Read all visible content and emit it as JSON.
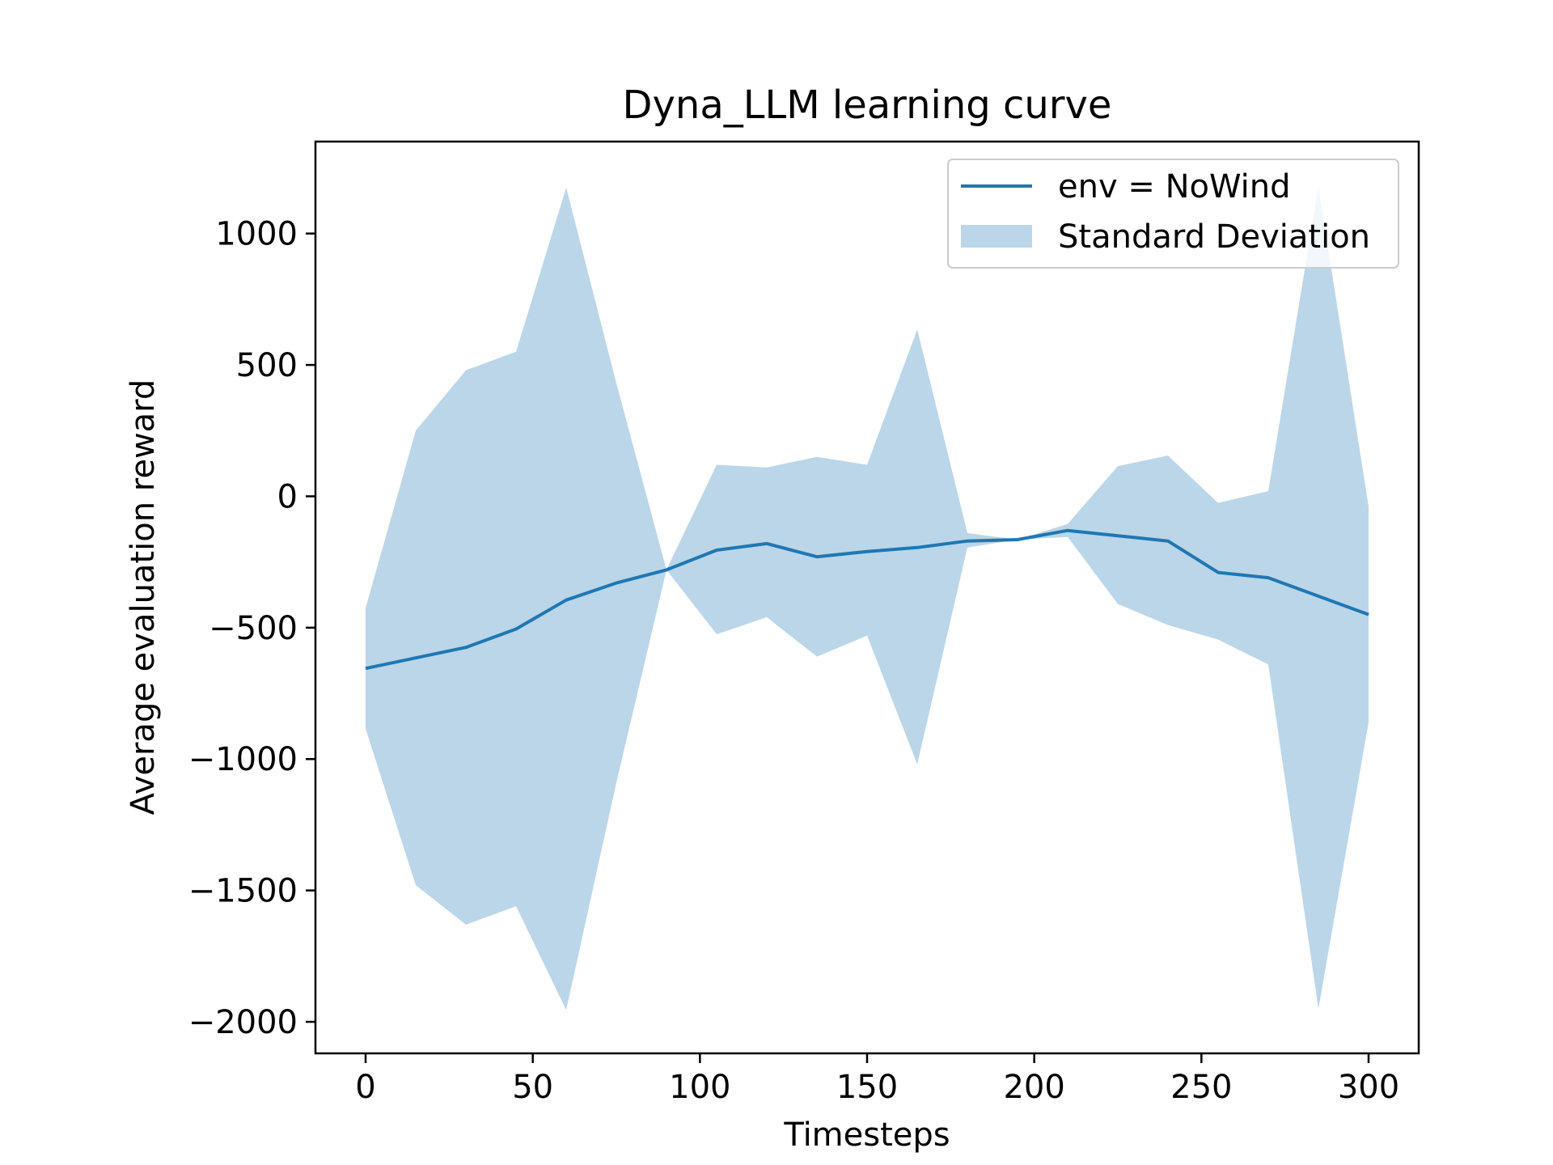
{
  "chart_data": {
    "type": "line",
    "title": "Dyna_LLM learning curve",
    "xlabel": "Timesteps",
    "ylabel": "Average evaluation reward",
    "xlim": [
      -15,
      315
    ],
    "ylim": [
      -2120,
      1350
    ],
    "xticks": [
      0,
      50,
      100,
      150,
      200,
      250,
      300
    ],
    "xtick_labels": [
      "0",
      "50",
      "100",
      "150",
      "200",
      "250",
      "300"
    ],
    "yticks": [
      -2000,
      -1500,
      -1000,
      -500,
      0,
      500,
      1000
    ],
    "ytick_labels": [
      "−2000",
      "−1500",
      "−1000",
      "−500",
      "0",
      "500",
      "1000"
    ],
    "grid": false,
    "legend_position": "top-right",
    "x": [
      0,
      15,
      30,
      45,
      60,
      75,
      90,
      105,
      120,
      135,
      150,
      165,
      180,
      195,
      210,
      225,
      240,
      255,
      270,
      285,
      300
    ],
    "series": [
      {
        "name": "env = NoWind",
        "color": "#1f77b4",
        "values": [
          -655,
          -615,
          -575,
          -505,
          -395,
          -330,
          -280,
          -205,
          -180,
          -230,
          -210,
          -195,
          -170,
          -165,
          -130,
          -150,
          -170,
          -290,
          -310,
          -380,
          -450
        ]
      }
    ],
    "band": {
      "name": "Standard Deviation",
      "color": "#1f77b4",
      "opacity": 0.3,
      "upper": [
        -425,
        250,
        480,
        550,
        1175,
        430,
        -280,
        120,
        110,
        150,
        120,
        635,
        -140,
        -165,
        -105,
        115,
        155,
        -25,
        20,
        1180,
        -40
      ],
      "lower": [
        -885,
        -1480,
        -1630,
        -1560,
        -1955,
        -1090,
        -280,
        -525,
        -460,
        -610,
        -530,
        -1020,
        -195,
        -165,
        -155,
        -410,
        -490,
        -545,
        -640,
        -1950,
        -860
      ]
    }
  }
}
